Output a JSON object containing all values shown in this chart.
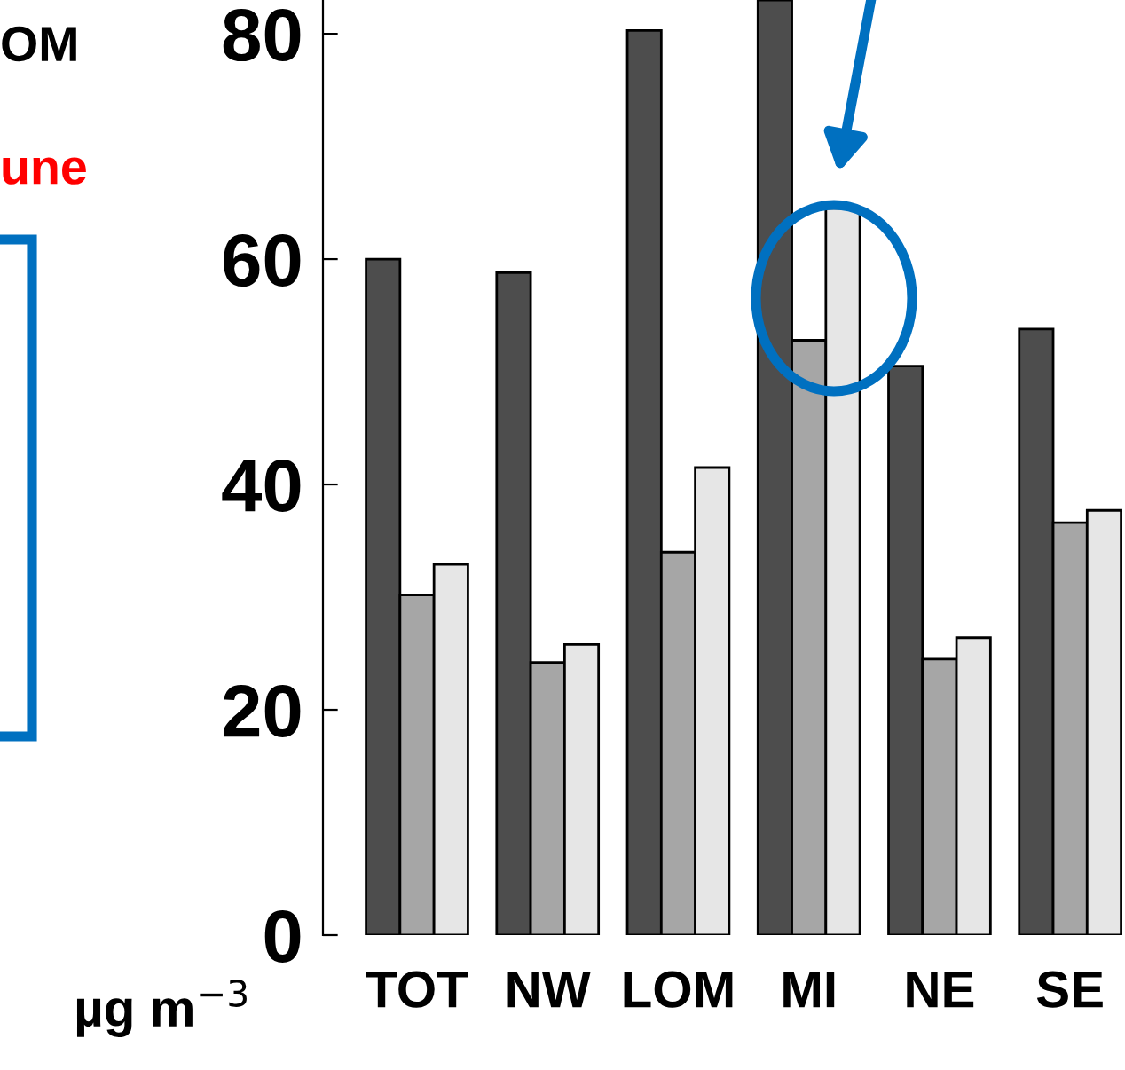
{
  "chart_data": {
    "type": "bar",
    "categories": [
      "TOT",
      "NW",
      "LOM",
      "MI",
      "NE",
      "SE"
    ],
    "series": [
      {
        "color": "#4d4d4d",
        "values": [
          60,
          58.8,
          80.3,
          83,
          50.5,
          53.8
        ]
      },
      {
        "color": "#a6a6a6",
        "values": [
          30.2,
          24.2,
          34,
          52.8,
          24.5,
          36.6
        ]
      },
      {
        "color": "#e6e6e6",
        "values": [
          32.9,
          25.8,
          41.5,
          64.5,
          26.4,
          37.7
        ]
      }
    ],
    "ylabel": "µg m$^{−3}$",
    "ylim": [
      0,
      83
    ],
    "yticks": [
      0,
      20,
      40,
      60,
      80
    ],
    "annotations": [
      "OM",
      "une"
    ],
    "grid": false,
    "legend": false
  }
}
